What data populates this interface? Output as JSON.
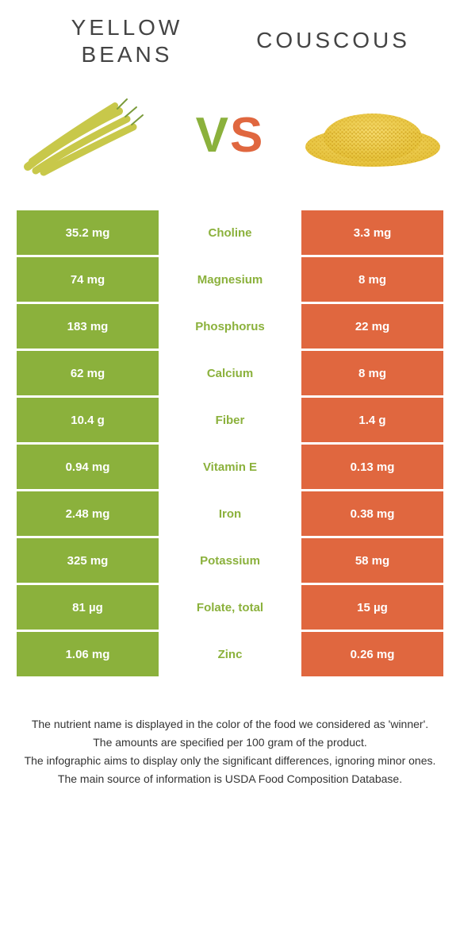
{
  "foods": {
    "left": {
      "name_line1": "YELLOW",
      "name_line2": "BEANS",
      "color": "#8bb13c"
    },
    "right": {
      "name": "COUSCOUS",
      "color": "#e0673f"
    }
  },
  "vs": {
    "v": "V",
    "s": "S"
  },
  "nutrients": [
    {
      "left": "35.2 mg",
      "label": "Choline",
      "right": "3.3 mg",
      "winner": "left"
    },
    {
      "left": "74 mg",
      "label": "Magnesium",
      "right": "8 mg",
      "winner": "left"
    },
    {
      "left": "183 mg",
      "label": "Phosphorus",
      "right": "22 mg",
      "winner": "left"
    },
    {
      "left": "62 mg",
      "label": "Calcium",
      "right": "8 mg",
      "winner": "left"
    },
    {
      "left": "10.4 g",
      "label": "Fiber",
      "right": "1.4 g",
      "winner": "left"
    },
    {
      "left": "0.94 mg",
      "label": "Vitamin E",
      "right": "0.13 mg",
      "winner": "left"
    },
    {
      "left": "2.48 mg",
      "label": "Iron",
      "right": "0.38 mg",
      "winner": "left"
    },
    {
      "left": "325 mg",
      "label": "Potassium",
      "right": "58 mg",
      "winner": "left"
    },
    {
      "left": "81 µg",
      "label": "Folate, total",
      "right": "15 µg",
      "winner": "left"
    },
    {
      "left": "1.06 mg",
      "label": "Zinc",
      "right": "0.26 mg",
      "winner": "left"
    }
  ],
  "footnotes": [
    "The nutrient name is displayed in the color of the food we considered as 'winner'.",
    "The amounts are specified per 100 gram of the product.",
    "The infographic aims to display only the significant differences, ignoring minor ones.",
    "The main source of information is USDA Food Composition Database."
  ],
  "colors": {
    "left_bg": "#8bb13c",
    "right_bg": "#e0673f",
    "text_light": "#ffffff"
  }
}
